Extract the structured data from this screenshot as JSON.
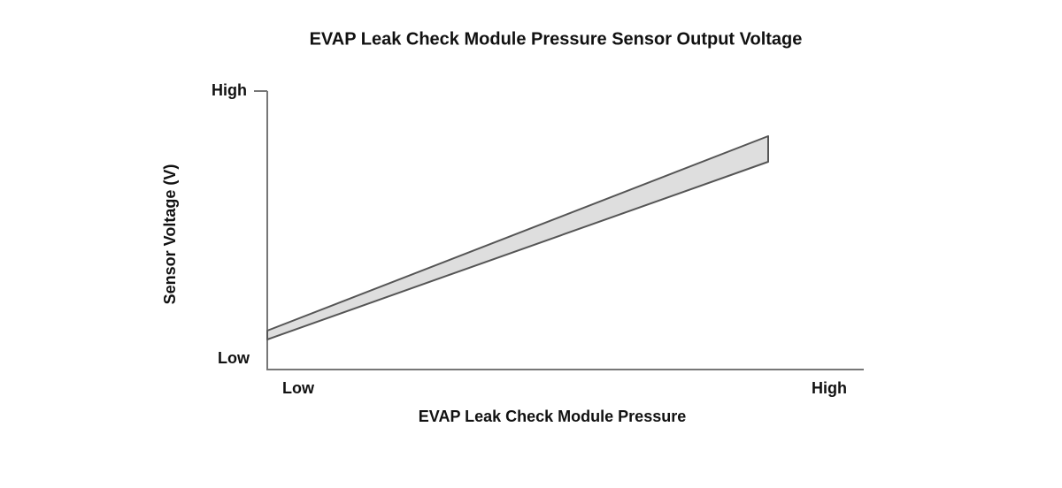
{
  "title": "EVAP Leak Check Module Pressure Sensor Output Voltage",
  "x_axis": {
    "label": "EVAP Leak Check Module Pressure",
    "low": "Low",
    "high": "High"
  },
  "y_axis": {
    "label": "Sensor Voltage (V)",
    "low": "Low",
    "high": "High"
  }
}
